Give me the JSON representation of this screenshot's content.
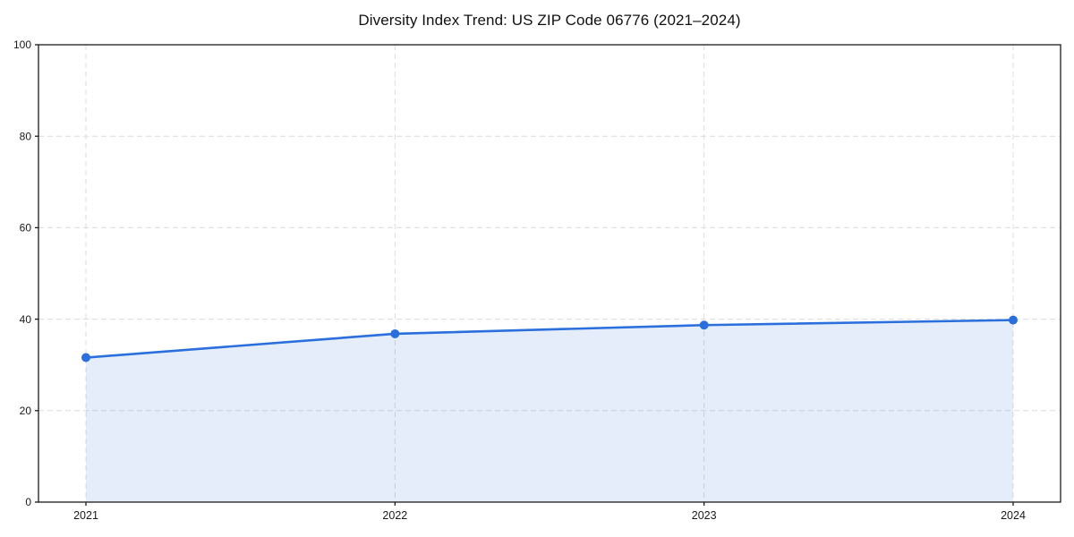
{
  "page": {
    "background": "#ffffff"
  },
  "chart_data": {
    "type": "area",
    "title": "Diversity Index Trend: US ZIP Code 06776 (2021–2024)",
    "categories": [
      "2021",
      "2022",
      "2023",
      "2024"
    ],
    "series": [
      {
        "name": "Diversity Index",
        "values": [
          31.6,
          36.8,
          38.7,
          39.8
        ]
      }
    ],
    "xlabel": "",
    "ylabel": "",
    "ylim": [
      0,
      100
    ],
    "yticks": [
      0,
      20,
      40,
      60,
      80,
      100
    ],
    "grid": "dashed",
    "legend_position": "none",
    "markers": "circle",
    "colors": {
      "line": "#2a6fdb",
      "marker": "#2a6fdb",
      "fill": "rgba(42,111,219,0.12)",
      "grid": "#dcdcdc",
      "axis": "#1a1a1a",
      "tick_text": "#1a1a1a",
      "title_text": "#111111"
    }
  }
}
